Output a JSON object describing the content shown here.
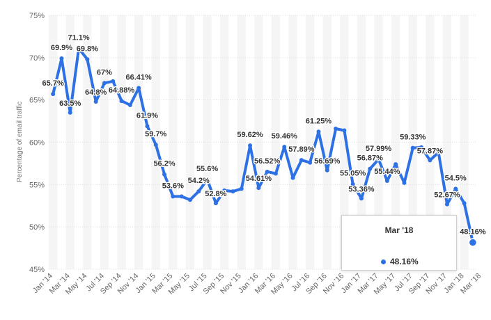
{
  "chart_data": {
    "type": "line",
    "title": "",
    "xlabel": "",
    "ylabel": "Percentage of email traffic",
    "ylim": [
      45,
      75
    ],
    "yticks": [
      "45%",
      "50%",
      "55%",
      "60%",
      "65%",
      "70%",
      "75%"
    ],
    "grid": true,
    "legend": "none",
    "x_tick_labels": [
      "Jan '14",
      "Mar '14",
      "May '14",
      "Jul '14",
      "Sep '14",
      "Nov '14",
      "Jan '15",
      "Mar '15",
      "May '15",
      "Jul '15",
      "Sep '15",
      "Nov '15",
      "Jan '16",
      "Mar '16",
      "May '16",
      "Jul '16",
      "Sep '16",
      "Nov '16",
      "Jan '17",
      "Mar '17",
      "May '17",
      "Jul '17",
      "Sep '17",
      "Nov '17",
      "Jan '18",
      "Mar '18"
    ],
    "series": [
      {
        "values": [
          65.7,
          69.9,
          63.5,
          71.1,
          69.8,
          64.8,
          67,
          67.2,
          64.88,
          64.4,
          66.41,
          61.9,
          59.7,
          56.2,
          53.6,
          53.6,
          53.2,
          54.2,
          55.6,
          52.8,
          54.3,
          54.2,
          54.5,
          59.62,
          54.61,
          56.52,
          56.3,
          59.46,
          55.8,
          57.89,
          57.6,
          61.25,
          56.69,
          61.6,
          61.4,
          55.05,
          53.36,
          56.87,
          57.99,
          55.44,
          57.4,
          55.2,
          59.33,
          59.4,
          57.87,
          58.8,
          52.67,
          54.5,
          52.8,
          48.16
        ],
        "labels": [
          "65.7%",
          "69.9%",
          "63.5%",
          "71.1%",
          "69.8%",
          "64.8%",
          "67%",
          "",
          "64.88%",
          "",
          "66.41%",
          "61.9%",
          "59.7%",
          "56.2%",
          "53.6%",
          "",
          "",
          "54.2%",
          "55.6%",
          "52.8%",
          "",
          "",
          "",
          "59.62%",
          "54.61%",
          "56.52%",
          "",
          "59.46%",
          "",
          "57.89%",
          "",
          "61.25%",
          "56.69%",
          "",
          "",
          "55.05%",
          "53.36%",
          "56.87%",
          "57.99%",
          "55.44%",
          "",
          "",
          "59.33%",
          "",
          "57.87%",
          "",
          "52.67%",
          "54.5%",
          "",
          "48.16%"
        ]
      }
    ],
    "colors": {
      "line": "#2d71e5",
      "band": "#f5f5f5",
      "grid": "#dddddd"
    }
  },
  "tooltip": {
    "title": "Mar '18",
    "value": "48.16%"
  }
}
